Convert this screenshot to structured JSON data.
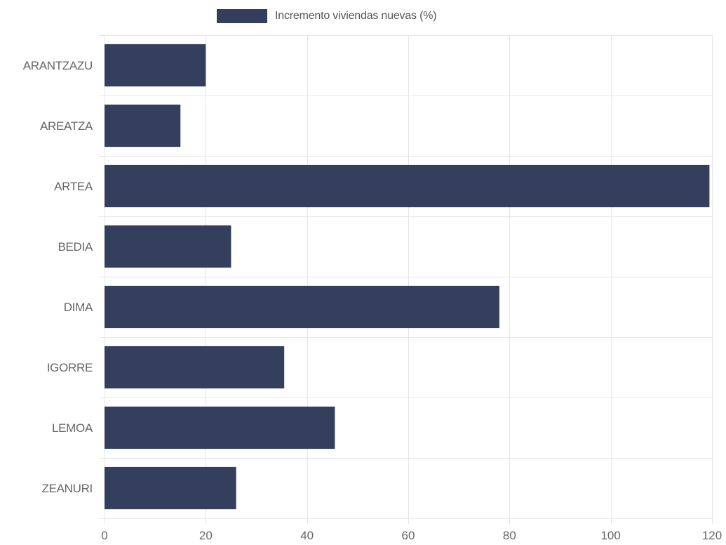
{
  "chart_data": {
    "type": "bar",
    "orientation": "horizontal",
    "categories": [
      "ARANTZAZU",
      "AREATZA",
      "ARTEA",
      "BEDIA",
      "DIMA",
      "IGORRE",
      "LEMOA",
      "ZEANURI"
    ],
    "series": [
      {
        "name": "Incremento viviendas nuevas (%)",
        "values": [
          20,
          15,
          119.5,
          25,
          78,
          35.5,
          45.5,
          26
        ]
      }
    ],
    "xlim": [
      0,
      120
    ],
    "xticks": [
      0,
      20,
      40,
      60,
      80,
      100,
      120
    ],
    "grid": true,
    "legend_position": "top"
  },
  "colors": {
    "bar": "#333f5c",
    "grid": "#e6e6e6",
    "axis_text": "#666666",
    "legend_text": "#555555"
  }
}
